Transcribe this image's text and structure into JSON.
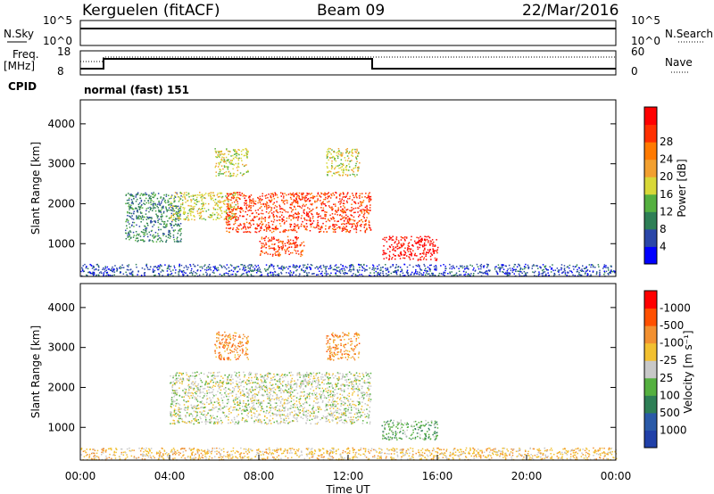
{
  "header": {
    "station": "Kerguelen (fitACF)",
    "beam": "Beam 09",
    "date": "22/Mar/2016"
  },
  "sky_panel": {
    "left_label": "N.Sky",
    "y_ticks": [
      "10^5",
      "10^0"
    ],
    "right_label": "N.Search",
    "right_ticks": [
      "10^5",
      "10^0"
    ]
  },
  "freq_panel": {
    "label_line1": "Freq.",
    "label_line2": "[MHz]",
    "y_ticks": [
      "18",
      "8"
    ],
    "right_label": "Nave",
    "right_ticks": [
      "60",
      "0"
    ],
    "cpid_label": "CPID",
    "cpid_text": "normal (fast) 151"
  },
  "chart_data": [
    {
      "type": "heatmap",
      "title": "Power",
      "ylabel": "Slant Range [km]",
      "xlabel": "",
      "x_ticks": [
        "00:00",
        "04:00",
        "08:00",
        "12:00",
        "16:00",
        "20:00",
        "00:00"
      ],
      "y_ticks": [
        "1000",
        "2000",
        "3000",
        "4000"
      ],
      "ylim": [
        180,
        4600
      ],
      "colorbar": {
        "label": "Power [dB]",
        "ticks": [
          "4",
          "8",
          "12",
          "16",
          "20",
          "24",
          "28"
        ],
        "colors": [
          "#0000ff",
          "#2a46a8",
          "#2e7f56",
          "#55b040",
          "#d8d838",
          "#f2a030",
          "#ff7a00",
          "#ff3000",
          "#ff0000"
        ]
      },
      "regions": [
        {
          "t0": 2.0,
          "t1": 4.5,
          "r0": 1050,
          "r1": 2300,
          "level": 2
        },
        {
          "t0": 4.0,
          "t1": 7.0,
          "r0": 1600,
          "r1": 2300,
          "level": 4
        },
        {
          "t0": 6.5,
          "t1": 13.0,
          "r0": 1300,
          "r1": 2300,
          "level": 7
        },
        {
          "t0": 8.0,
          "t1": 10.0,
          "r0": 700,
          "r1": 1200,
          "level": 7
        },
        {
          "t0": 13.5,
          "t1": 16.0,
          "r0": 600,
          "r1": 1200,
          "level": 8
        },
        {
          "t0": 6.0,
          "t1": 7.5,
          "r0": 2700,
          "r1": 3400,
          "level": 4
        },
        {
          "t0": 11.0,
          "t1": 12.5,
          "r0": 2700,
          "r1": 3400,
          "level": 4
        },
        {
          "t0": 0.0,
          "t1": 24.0,
          "r0": 200,
          "r1": 500,
          "level": 1
        }
      ]
    },
    {
      "type": "heatmap",
      "title": "Velocity",
      "ylabel": "Slant Range [km]",
      "xlabel": "Time UT",
      "x_ticks": [
        "00:00",
        "04:00",
        "08:00",
        "12:00",
        "16:00",
        "20:00",
        "00:00"
      ],
      "y_ticks": [
        "1000",
        "2000",
        "3000",
        "4000"
      ],
      "ylim": [
        180,
        4600
      ],
      "colorbar": {
        "label": "Velocity [m s⁻¹]",
        "ticks": [
          "1000",
          "500",
          "100",
          "25",
          "-25",
          "-100",
          "-500",
          "-1000"
        ],
        "colors": [
          "#2040a8",
          "#2a5aa8",
          "#2e7f56",
          "#55b040",
          "#c8c8c8",
          "#f2c030",
          "#f29030",
          "#ff5000",
          "#ff0000"
        ]
      },
      "regions": [
        {
          "t0": 4.0,
          "t1": 13.0,
          "r0": 1100,
          "r1": 2400,
          "level": 4
        },
        {
          "t0": 6.0,
          "t1": 7.5,
          "r0": 2700,
          "r1": 3400,
          "level": 6
        },
        {
          "t0": 11.0,
          "t1": 12.5,
          "r0": 2700,
          "r1": 3400,
          "level": 6
        },
        {
          "t0": 13.5,
          "t1": 16.0,
          "r0": 700,
          "r1": 1200,
          "level": 3
        },
        {
          "t0": 0.0,
          "t1": 24.0,
          "r0": 200,
          "r1": 500,
          "level": 5
        }
      ]
    }
  ]
}
